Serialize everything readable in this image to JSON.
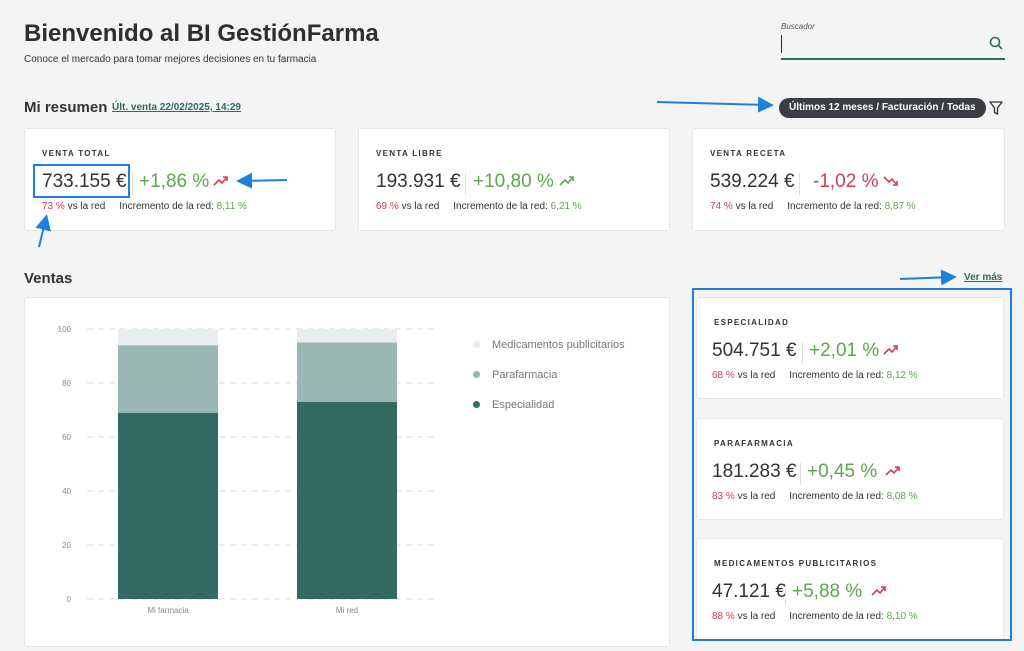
{
  "header": {
    "title": "Bienvenido al BI GestiónFarma",
    "subtitle": "Conoce el mercado para tomar mejores decisiones en tu farmacia"
  },
  "search": {
    "label": "Buscador",
    "value": "",
    "icon": "search-icon"
  },
  "resumen": {
    "title": "Mi resumen",
    "last_sale_link": "Últ. venta 22/02/2025, 14:29",
    "filter_pill": "Últimos 12 meses / Facturación / Todas",
    "filter_icon": "funnel-icon"
  },
  "summary_cards": [
    {
      "label": "VENTA TOTAL",
      "value": "733.155 €",
      "pct": "+1,86 %",
      "trend": "up",
      "share": "73 %",
      "share_label": "vs la red",
      "red_label": "Incremento de la red:",
      "red_value": "8,11 %"
    },
    {
      "label": "VENTA LIBRE",
      "value": "193.931 €",
      "pct": "+10,80 %",
      "trend": "up",
      "share": "69 %",
      "share_label": "vs la red",
      "red_label": "Incremento de la red:",
      "red_value": "6,21 %"
    },
    {
      "label": "VENTA RECETA",
      "value": "539.224 €",
      "pct": "-1,02 %",
      "trend": "down",
      "share": "74 %",
      "share_label": "vs la red",
      "red_label": "Incremento de la red:",
      "red_value": "8,87 %"
    }
  ],
  "ventas": {
    "title": "Ventas",
    "ver_mas": "Ver más"
  },
  "side_cards": [
    {
      "label": "ESPECIALIDAD",
      "value": "504.751 €",
      "pct": "+2,01 %",
      "trend": "up",
      "share": "68 %",
      "share_label": "vs la red",
      "red_label": "Incremento de la red:",
      "red_value": "8,12 %"
    },
    {
      "label": "PARAFARMACIA",
      "value": "181.283 €",
      "pct": "+0,45 %",
      "trend": "up",
      "share": "83 %",
      "share_label": "vs la red",
      "red_label": "Incremento de la red:",
      "red_value": "8,08 %"
    },
    {
      "label": "MEDICAMENTOS PUBLICITARIOS",
      "value": "47.121 €",
      "pct": "+5,88 %",
      "trend": "up",
      "share": "88 %",
      "share_label": "vs la red",
      "red_label": "Incremento de la red:",
      "red_value": "8,10 %"
    }
  ],
  "colors": {
    "accent": "#2f6a63",
    "positive": "#5fa552",
    "negative": "#d43b52",
    "annotation": "#1f80d9"
  },
  "chart_data": {
    "type": "bar",
    "stacked": true,
    "categories": [
      "Mi farmacia",
      "Mi red"
    ],
    "series": [
      {
        "name": "Especialidad",
        "values": [
          69,
          73
        ],
        "color": "#336b64"
      },
      {
        "name": "Parafarmacia",
        "values": [
          25,
          22
        ],
        "color": "#9bb7b3"
      },
      {
        "name": "Medicamentos publicitarios",
        "values": [
          6,
          5
        ],
        "color": "#e8eeed"
      }
    ],
    "yticks": [
      0,
      20,
      40,
      60,
      80,
      100
    ],
    "ylim": [
      0,
      100
    ],
    "grid": true,
    "legend_position": "right"
  }
}
